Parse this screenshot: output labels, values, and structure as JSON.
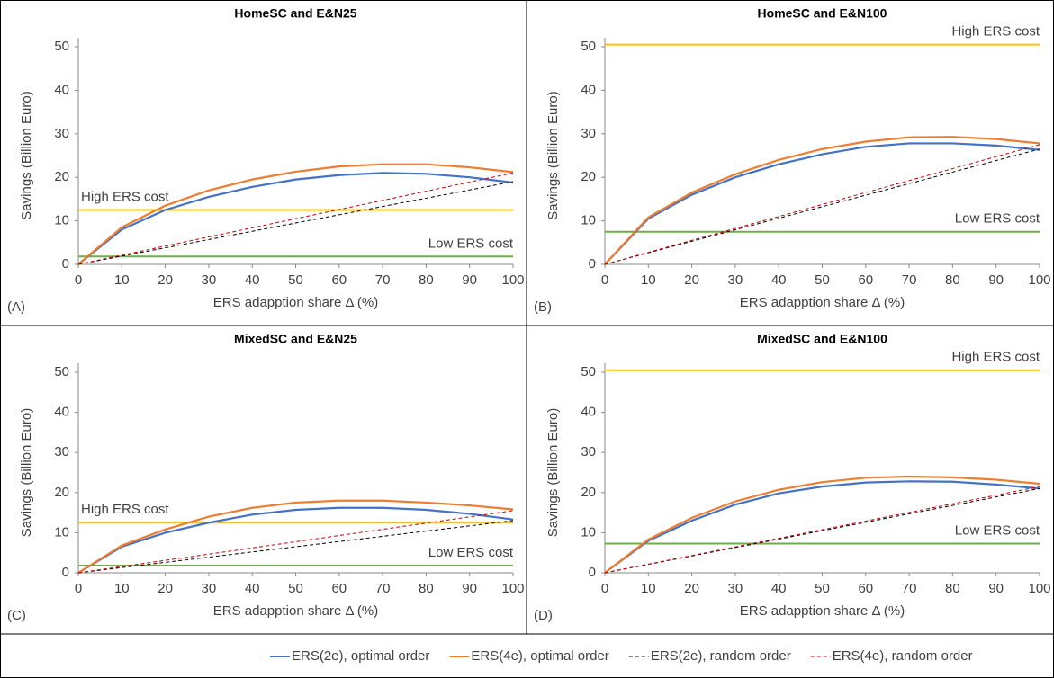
{
  "chart_data": [
    {
      "type": "line",
      "panel": "(A)",
      "title": "HomeSC and E&N25",
      "xlabel": "ERS adapption share Δ (%)",
      "ylabel": "Savings (Billion Euro)",
      "x": [
        0,
        10,
        20,
        30,
        40,
        50,
        60,
        70,
        80,
        90,
        100
      ],
      "xlim": [
        0,
        100
      ],
      "xticks": [
        0,
        10,
        20,
        30,
        40,
        50,
        60,
        70,
        80,
        90,
        100
      ],
      "ylim": [
        0,
        50
      ],
      "yticks": [
        0,
        10,
        20,
        30,
        40,
        50
      ],
      "series": [
        {
          "name": "ERS(2e), optimal order",
          "color": "#4472c4",
          "style": "solid",
          "values": [
            0,
            8,
            12.5,
            15.5,
            17.8,
            19.5,
            20.5,
            21,
            20.8,
            20,
            18.8
          ]
        },
        {
          "name": "ERS(4e), optimal order",
          "color": "#ed7d31",
          "style": "solid",
          "values": [
            0,
            8.5,
            13.5,
            17,
            19.5,
            21.3,
            22.5,
            23,
            23,
            22.3,
            21.2
          ]
        },
        {
          "name": "ERS(2e), random order",
          "color": "#000000",
          "style": "dashed",
          "x": [
            0,
            100
          ],
          "values": [
            0,
            19
          ]
        },
        {
          "name": "ERS(4e), random order",
          "color": "#c00000",
          "style": "dashed",
          "x": [
            0,
            100
          ],
          "values": [
            0,
            21
          ]
        }
      ],
      "reference_lines": [
        {
          "label": "High ERS cost",
          "value": 12.5,
          "color": "#ffc000",
          "label_position": "left"
        },
        {
          "label": "Low ERS cost",
          "value": 1.8,
          "color": "#70ad47",
          "label_position": "right"
        }
      ]
    },
    {
      "type": "line",
      "panel": "(B)",
      "title": "HomeSC and E&N100",
      "xlabel": "ERS adapption share Δ (%)",
      "ylabel": "Savings (Billion Euro)",
      "x": [
        0,
        10,
        20,
        30,
        40,
        50,
        60,
        70,
        80,
        90,
        100
      ],
      "xlim": [
        0,
        100
      ],
      "xticks": [
        0,
        10,
        20,
        30,
        40,
        50,
        60,
        70,
        80,
        90,
        100
      ],
      "ylim": [
        0,
        50
      ],
      "yticks": [
        0,
        10,
        20,
        30,
        40,
        50
      ],
      "series": [
        {
          "name": "ERS(2e), optimal order",
          "color": "#4472c4",
          "style": "solid",
          "values": [
            0,
            10.5,
            16,
            20,
            23,
            25.3,
            27,
            27.8,
            27.8,
            27.3,
            26.3
          ]
        },
        {
          "name": "ERS(4e), optimal order",
          "color": "#ed7d31",
          "style": "solid",
          "values": [
            0,
            10.8,
            16.5,
            20.7,
            24,
            26.5,
            28.2,
            29.2,
            29.3,
            28.8,
            27.8
          ]
        },
        {
          "name": "ERS(2e), random order",
          "color": "#000000",
          "style": "dashed",
          "x": [
            0,
            100
          ],
          "values": [
            0,
            26.5
          ]
        },
        {
          "name": "ERS(4e), random order",
          "color": "#c00000",
          "style": "dashed",
          "x": [
            0,
            100
          ],
          "values": [
            0,
            27.5
          ]
        }
      ],
      "reference_lines": [
        {
          "label": "High ERS cost",
          "value": 50.5,
          "color": "#ffc000",
          "label_position": "right"
        },
        {
          "label": "Low ERS cost",
          "value": 7.5,
          "color": "#70ad47",
          "label_position": "right"
        }
      ]
    },
    {
      "type": "line",
      "panel": "(C)",
      "title": "MixedSC and E&N25",
      "xlabel": "ERS adapption share Δ (%)",
      "ylabel": "Savings (Billion Euro)",
      "x": [
        0,
        10,
        20,
        30,
        40,
        50,
        60,
        70,
        80,
        90,
        100
      ],
      "xlim": [
        0,
        100
      ],
      "xticks": [
        0,
        10,
        20,
        30,
        40,
        50,
        60,
        70,
        80,
        90,
        100
      ],
      "ylim": [
        0,
        50
      ],
      "yticks": [
        0,
        10,
        20,
        30,
        40,
        50
      ],
      "series": [
        {
          "name": "ERS(2e), optimal order",
          "color": "#4472c4",
          "style": "solid",
          "values": [
            0,
            6.5,
            10,
            12.5,
            14.5,
            15.7,
            16.2,
            16.2,
            15.7,
            14.7,
            13.3
          ]
        },
        {
          "name": "ERS(4e), optimal order",
          "color": "#ed7d31",
          "style": "solid",
          "values": [
            0,
            6.8,
            10.8,
            14,
            16.2,
            17.5,
            18,
            18,
            17.5,
            16.8,
            15.8
          ]
        },
        {
          "name": "ERS(2e), random order",
          "color": "#000000",
          "style": "dashed",
          "x": [
            0,
            100
          ],
          "values": [
            0,
            13
          ]
        },
        {
          "name": "ERS(4e), random order",
          "color": "#c00000",
          "style": "dashed",
          "x": [
            0,
            100
          ],
          "values": [
            0,
            15.5
          ]
        }
      ],
      "reference_lines": [
        {
          "label": "High ERS cost",
          "value": 12.5,
          "color": "#ffc000",
          "label_position": "left"
        },
        {
          "label": "Low ERS cost",
          "value": 1.8,
          "color": "#70ad47",
          "label_position": "right"
        }
      ]
    },
    {
      "type": "line",
      "panel": "(D)",
      "title": "MixedSC and E&N100",
      "xlabel": "ERS adapption share Δ (%)",
      "ylabel": "Savings (Billion Euro)",
      "x": [
        0,
        10,
        20,
        30,
        40,
        50,
        60,
        70,
        80,
        90,
        100
      ],
      "xlim": [
        0,
        100
      ],
      "xticks": [
        0,
        10,
        20,
        30,
        40,
        50,
        60,
        70,
        80,
        90,
        100
      ],
      "ylim": [
        0,
        50
      ],
      "yticks": [
        0,
        10,
        20,
        30,
        40,
        50
      ],
      "series": [
        {
          "name": "ERS(2e), optimal order",
          "color": "#4472c4",
          "style": "solid",
          "values": [
            0,
            8,
            13,
            17,
            19.8,
            21.5,
            22.5,
            22.8,
            22.7,
            22,
            21
          ]
        },
        {
          "name": "ERS(4e), optimal order",
          "color": "#ed7d31",
          "style": "solid",
          "values": [
            0,
            8.3,
            13.7,
            17.8,
            20.7,
            22.6,
            23.7,
            24,
            23.8,
            23.2,
            22.2
          ]
        },
        {
          "name": "ERS(2e), random order",
          "color": "#000000",
          "style": "dashed",
          "x": [
            0,
            100
          ],
          "values": [
            0,
            21
          ]
        },
        {
          "name": "ERS(4e), random order",
          "color": "#c00000",
          "style": "dashed",
          "x": [
            0,
            100
          ],
          "values": [
            0,
            21.5
          ]
        }
      ],
      "reference_lines": [
        {
          "label": "High ERS cost",
          "value": 50.5,
          "color": "#ffc000",
          "label_position": "right"
        },
        {
          "label": "Low ERS cost",
          "value": 7.3,
          "color": "#70ad47",
          "label_position": "right"
        }
      ]
    }
  ]
}
